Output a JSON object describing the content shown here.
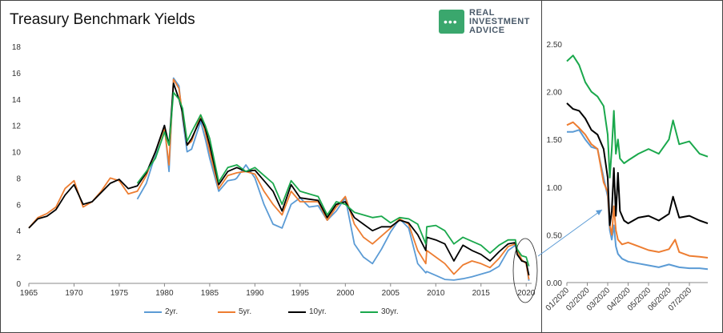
{
  "chart_data": [
    {
      "type": "line",
      "title": "Treasury Benchmark Yields",
      "xlabel": "",
      "ylabel": "",
      "xlim": [
        1965,
        2020.6
      ],
      "ylim": [
        0,
        18
      ],
      "x_ticks": [
        "1965",
        "1970",
        "1975",
        "1980",
        "1985",
        "1990",
        "1995",
        "2000",
        "2005",
        "2010",
        "2015",
        "2020"
      ],
      "y_ticks": [
        "0",
        "2",
        "4",
        "6",
        "8",
        "10",
        "12",
        "14",
        "16",
        "18"
      ],
      "grid": false,
      "legend_position": "bottom",
      "series": [
        {
          "name": "2yr.",
          "color": "#5b9bd5",
          "x": [
            1977,
            1978,
            1979,
            1980,
            1980.5,
            1981,
            1981.6,
            1982,
            1982.5,
            1983,
            1984,
            1984.5,
            1985,
            1986,
            1987,
            1987.8,
            1988,
            1989,
            1990,
            1991,
            1992,
            1993,
            1994,
            1995,
            1996,
            1997,
            1998,
            1999,
            2000,
            2001,
            2002,
            2003,
            2004,
            2005,
            2006,
            2007,
            2008,
            2008.9,
            2009,
            2010,
            2011,
            2012,
            2013,
            2014,
            2015,
            2016,
            2017,
            2018,
            2018.8,
            2019,
            2019.5,
            2020,
            2020.3
          ],
          "y": [
            6.4,
            7.6,
            9.8,
            12.0,
            8.5,
            15.6,
            15.0,
            12.5,
            10.0,
            10.2,
            12.3,
            11.0,
            9.5,
            7.0,
            7.8,
            7.9,
            8.0,
            9.0,
            8.0,
            6.0,
            4.5,
            4.2,
            6.0,
            6.5,
            5.8,
            5.9,
            4.8,
            5.5,
            6.5,
            3.0,
            2.0,
            1.5,
            2.6,
            3.9,
            4.9,
            4.2,
            1.5,
            0.8,
            0.9,
            0.6,
            0.3,
            0.25,
            0.35,
            0.5,
            0.7,
            0.9,
            1.3,
            2.5,
            2.9,
            2.5,
            1.8,
            1.5,
            0.2
          ]
        },
        {
          "name": "5yr.",
          "color": "#ed7d31",
          "x": [
            1965,
            1966,
            1967,
            1968,
            1969,
            1970,
            1971,
            1972,
            1973,
            1974,
            1975,
            1976,
            1977,
            1978,
            1979,
            1980,
            1980.5,
            1981,
            1981.6,
            1982,
            1982.5,
            1983,
            1984,
            1984.5,
            1985,
            1986,
            1987,
            1988,
            1989,
            1990,
            1991,
            1992,
            1993,
            1994,
            1995,
            1996,
            1997,
            1998,
            1999,
            2000,
            2001,
            2002,
            2003,
            2004,
            2005,
            2006,
            2007,
            2008,
            2008.9,
            2009,
            2010,
            2011,
            2012,
            2013,
            2014,
            2015,
            2016,
            2017,
            2018,
            2018.8,
            2019,
            2019.5,
            2020,
            2020.3
          ],
          "y": [
            4.2,
            5.0,
            5.3,
            5.8,
            7.2,
            7.8,
            5.8,
            6.2,
            7.0,
            8.0,
            7.8,
            6.8,
            7.0,
            8.2,
            10.0,
            11.8,
            9.0,
            15.5,
            14.8,
            12.8,
            10.5,
            10.8,
            12.8,
            11.5,
            10.0,
            7.2,
            8.2,
            8.4,
            8.5,
            8.3,
            7.0,
            6.0,
            5.2,
            7.0,
            6.2,
            6.2,
            6.2,
            4.8,
            5.8,
            6.6,
            4.5,
            3.5,
            3.0,
            3.6,
            4.2,
            4.9,
            4.5,
            2.5,
            1.5,
            2.5,
            2.0,
            1.5,
            0.7,
            1.4,
            1.7,
            1.5,
            1.2,
            1.9,
            2.8,
            3.0,
            2.5,
            1.8,
            1.5,
            0.3
          ]
        },
        {
          "name": "10yr.",
          "color": "#000000",
          "x": [
            1965,
            1966,
            1967,
            1968,
            1969,
            1970,
            1971,
            1972,
            1973,
            1974,
            1975,
            1976,
            1977,
            1978,
            1979,
            1980,
            1980.5,
            1981,
            1981.6,
            1982,
            1982.5,
            1983,
            1984,
            1984.5,
            1985,
            1986,
            1987,
            1988,
            1989,
            1990,
            1991,
            1992,
            1993,
            1994,
            1995,
            1996,
            1997,
            1998,
            1999,
            2000,
            2001,
            2002,
            2003,
            2004,
            2005,
            2006,
            2007,
            2008,
            2008.9,
            2009,
            2010,
            2011,
            2012,
            2013,
            2014,
            2015,
            2016,
            2017,
            2018,
            2018.8,
            2019,
            2019.5,
            2020,
            2020.3
          ],
          "y": [
            4.2,
            4.9,
            5.1,
            5.6,
            6.7,
            7.5,
            6.0,
            6.2,
            6.9,
            7.6,
            7.9,
            7.2,
            7.4,
            8.4,
            10.0,
            12.0,
            10.5,
            15.2,
            14.0,
            13.0,
            10.5,
            11.0,
            12.5,
            11.8,
            10.5,
            7.5,
            8.5,
            8.8,
            8.5,
            8.6,
            7.8,
            7.0,
            5.5,
            7.5,
            6.5,
            6.4,
            6.3,
            5.0,
            6.0,
            6.2,
            5.0,
            4.5,
            4.0,
            4.3,
            4.3,
            4.8,
            4.6,
            3.7,
            2.5,
            3.5,
            3.3,
            3.0,
            1.7,
            2.9,
            2.5,
            2.2,
            1.7,
            2.4,
            3.0,
            3.1,
            2.2,
            1.7,
            1.6,
            0.6
          ]
        },
        {
          "name": "30yr.",
          "color": "#1aa84c",
          "x": [
            1977,
            1978,
            1979,
            1980,
            1980.5,
            1981,
            1981.6,
            1982,
            1982.5,
            1983,
            1984,
            1984.5,
            1985,
            1986,
            1987,
            1988,
            1989,
            1990,
            1991,
            1992,
            1993,
            1994,
            1995,
            1996,
            1997,
            1998,
            1999,
            2000,
            2001,
            2002,
            2003,
            2004,
            2005,
            2006,
            2007,
            2008,
            2008.9,
            2009,
            2010,
            2011,
            2012,
            2013,
            2014,
            2015,
            2016,
            2017,
            2018,
            2018.8,
            2019,
            2019.5,
            2020,
            2020.3
          ],
          "y": [
            7.6,
            8.5,
            9.5,
            11.5,
            10.5,
            14.5,
            14.0,
            13.3,
            10.8,
            11.5,
            12.8,
            12.0,
            11.0,
            7.7,
            8.8,
            9.0,
            8.5,
            8.8,
            8.2,
            7.6,
            6.0,
            7.8,
            7.0,
            6.8,
            6.6,
            5.2,
            6.2,
            6.0,
            5.4,
            5.2,
            5.0,
            5.1,
            4.6,
            5.0,
            4.9,
            4.5,
            3.0,
            4.3,
            4.4,
            4.0,
            3.0,
            3.5,
            3.2,
            2.9,
            2.3,
            2.9,
            3.3,
            3.3,
            2.6,
            2.1,
            2.0,
            1.3
          ]
        }
      ]
    },
    {
      "type": "line",
      "title": "",
      "xlabel": "",
      "ylabel": "",
      "ylim": [
        0,
        2.5
      ],
      "x_ticks": [
        "01/2020",
        "02/2020",
        "03/2020",
        "04/2020",
        "05/2020",
        "06/2020",
        "07/2020"
      ],
      "y_ticks": [
        "0.00",
        "0.50",
        "1.00",
        "1.50",
        "2.00",
        "2.50"
      ],
      "grid": false,
      "series": [
        {
          "name": "2yr.",
          "color": "#5b9bd5",
          "x": [
            1.0,
            1.3,
            1.6,
            1.9,
            2.2,
            2.5,
            2.8,
            3.0,
            3.1,
            3.2,
            3.3,
            3.4,
            3.5,
            3.7,
            4.0,
            4.5,
            5.0,
            5.5,
            6.0,
            6.5,
            7.0,
            7.5,
            7.9
          ],
          "y": [
            1.58,
            1.58,
            1.6,
            1.5,
            1.42,
            1.4,
            1.1,
            0.9,
            0.55,
            0.45,
            0.6,
            0.38,
            0.3,
            0.25,
            0.22,
            0.2,
            0.18,
            0.16,
            0.19,
            0.16,
            0.15,
            0.15,
            0.14
          ]
        },
        {
          "name": "5yr.",
          "color": "#ed7d31",
          "x": [
            1.0,
            1.3,
            1.6,
            1.9,
            2.2,
            2.5,
            2.8,
            3.0,
            3.1,
            3.2,
            3.3,
            3.4,
            3.5,
            3.7,
            4.0,
            4.5,
            5.0,
            5.5,
            6.0,
            6.3,
            6.5,
            7.0,
            7.5,
            7.9
          ],
          "y": [
            1.65,
            1.68,
            1.62,
            1.55,
            1.45,
            1.4,
            1.05,
            0.95,
            0.6,
            0.5,
            0.8,
            0.55,
            0.45,
            0.4,
            0.42,
            0.38,
            0.34,
            0.32,
            0.35,
            0.45,
            0.32,
            0.28,
            0.27,
            0.26
          ]
        },
        {
          "name": "10yr.",
          "color": "#000000",
          "x": [
            1.0,
            1.3,
            1.6,
            1.9,
            2.2,
            2.5,
            2.8,
            3.0,
            3.1,
            3.2,
            3.3,
            3.4,
            3.5,
            3.6,
            3.8,
            4.0,
            4.5,
            5.0,
            5.5,
            6.0,
            6.2,
            6.5,
            7.0,
            7.5,
            7.9
          ],
          "y": [
            1.88,
            1.82,
            1.8,
            1.72,
            1.6,
            1.55,
            1.4,
            1.1,
            0.6,
            0.75,
            1.2,
            0.7,
            1.15,
            0.75,
            0.65,
            0.62,
            0.68,
            0.7,
            0.65,
            0.72,
            0.9,
            0.68,
            0.7,
            0.65,
            0.62
          ]
        },
        {
          "name": "30yr.",
          "color": "#1aa84c",
          "x": [
            1.0,
            1.3,
            1.6,
            1.9,
            2.2,
            2.5,
            2.8,
            3.0,
            3.1,
            3.2,
            3.3,
            3.4,
            3.5,
            3.6,
            3.8,
            4.0,
            4.5,
            5.0,
            5.5,
            6.0,
            6.2,
            6.5,
            7.0,
            7.5,
            7.9
          ],
          "y": [
            2.32,
            2.38,
            2.28,
            2.1,
            2.0,
            1.95,
            1.85,
            1.55,
            1.1,
            1.4,
            1.8,
            1.35,
            1.5,
            1.3,
            1.25,
            1.28,
            1.35,
            1.4,
            1.35,
            1.5,
            1.7,
            1.45,
            1.48,
            1.35,
            1.32
          ]
        }
      ]
    }
  ],
  "brand": {
    "line1": "REAL",
    "line2": "INVESTMENT",
    "line3": "ADVICE",
    "dots": "•••"
  }
}
